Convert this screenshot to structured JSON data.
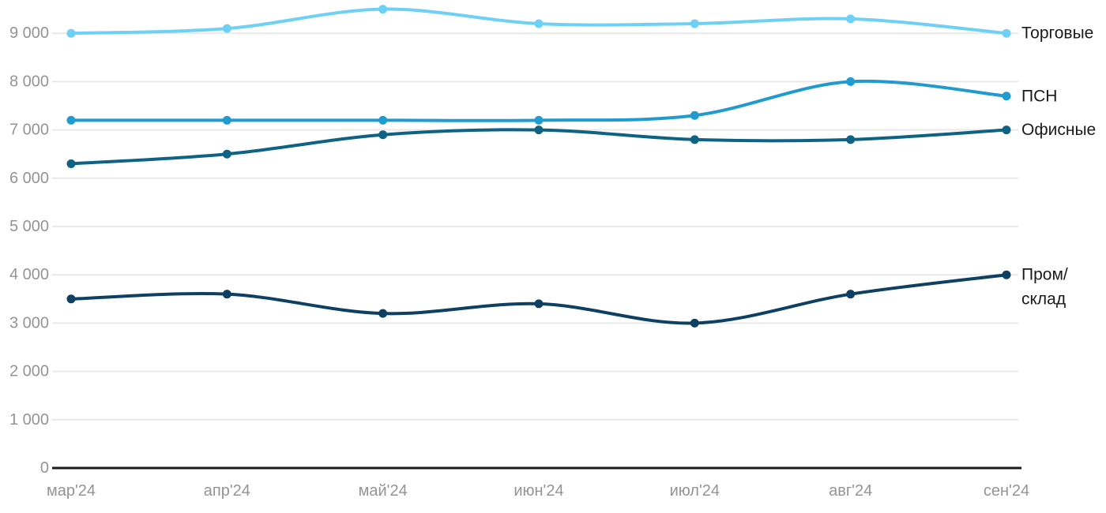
{
  "page": {
    "background": "#FFFFFF"
  },
  "chart_data": {
    "type": "line",
    "title": "",
    "xlabel": "",
    "ylabel": "",
    "line_style": "smooth",
    "markers": true,
    "grid": "horizontal",
    "legend_position": "right-end-labels",
    "ylim": [
      0,
      9690
    ],
    "categories": [
      "мар'24",
      "апр'24",
      "май'24",
      "июн'24",
      "июл'24",
      "авг'24",
      "сен'24"
    ],
    "y_ticks": [
      {
        "value": 0,
        "label": "0"
      },
      {
        "value": 1000,
        "label": "1 000"
      },
      {
        "value": 2000,
        "label": "2 000"
      },
      {
        "value": 3000,
        "label": "3 000"
      },
      {
        "value": 4000,
        "label": "4 000"
      },
      {
        "value": 5000,
        "label": "5 000"
      },
      {
        "value": 6000,
        "label": "6 000"
      },
      {
        "value": 7000,
        "label": "7 000"
      },
      {
        "value": 8000,
        "label": "8 000"
      },
      {
        "value": 9000,
        "label": "9 000"
      }
    ],
    "series": [
      {
        "id": "torgovye",
        "name": "Торговые",
        "color": "#6DD0F4",
        "values": [
          9000,
          9100,
          9500,
          9200,
          9200,
          9300,
          9000
        ],
        "label_lines": [
          "Торговые"
        ]
      },
      {
        "id": "psn",
        "name": "ПСН",
        "color": "#209BCF",
        "values": [
          7200,
          7200,
          7200,
          7200,
          7300,
          8000,
          7700
        ],
        "label_lines": [
          "ПСН"
        ]
      },
      {
        "id": "ofisnye",
        "name": "Офисные",
        "color": "#0E6284",
        "values": [
          6300,
          6500,
          6900,
          7000,
          6800,
          6800,
          7000
        ],
        "label_lines": [
          "Офисные"
        ]
      },
      {
        "id": "prom-sklad",
        "name": "Пром/склад",
        "color": "#0E4063",
        "values": [
          3500,
          3600,
          3200,
          3400,
          3000,
          3600,
          4000
        ],
        "label_lines": [
          "Пром/",
          "склад"
        ]
      }
    ],
    "colors": {
      "grid": "#E9E9E9",
      "axis": "#1A1A1A",
      "tick_text": "#949494",
      "series_label_text": "#1A1A1A",
      "background": "#FFFFFF"
    }
  }
}
